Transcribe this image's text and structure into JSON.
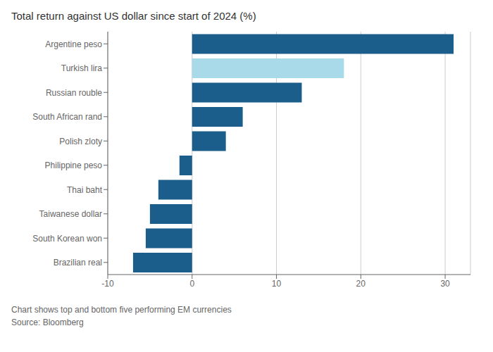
{
  "chart_data": {
    "type": "bar",
    "orientation": "horizontal",
    "title": "Total return against US dollar since start of 2024 (%)",
    "categories": [
      "Argentine peso",
      "Turkish lira",
      "Russian rouble",
      "South African rand",
      "Polish zloty",
      "Philippine peso",
      "Thai baht",
      "Taiwanese dollar",
      "South Korean won",
      "Brazilian real"
    ],
    "values": [
      31.0,
      18.0,
      13.0,
      6.0,
      4.0,
      -1.5,
      -4.0,
      -5.0,
      -5.5,
      -7.0
    ],
    "colors": [
      "#1b5e8c",
      "#a8daea",
      "#1b5e8c",
      "#1b5e8c",
      "#1b5e8c",
      "#1b5e8c",
      "#1b5e8c",
      "#1b5e8c",
      "#1b5e8c",
      "#1b5e8c"
    ],
    "xlim": [
      -10,
      33
    ],
    "xticks": [
      -10,
      0,
      10,
      20,
      30
    ],
    "grid": true,
    "annotations": [
      "Chart shows top and bottom five performing EM currencies",
      "Source: Bloomberg"
    ]
  }
}
